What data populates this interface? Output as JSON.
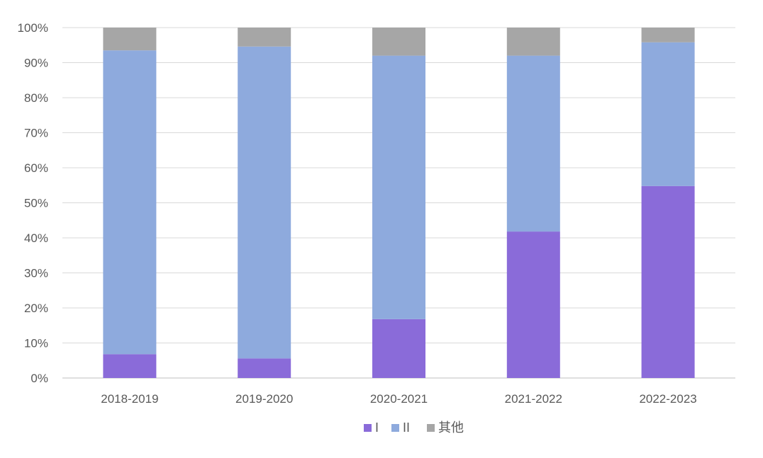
{
  "chart_data": {
    "type": "bar",
    "stacked": true,
    "normalized": true,
    "categories": [
      "2018-2019",
      "2019-2020",
      "2020-2021",
      "2021-2022",
      "2022-2023"
    ],
    "series": [
      {
        "name": "I",
        "color": "#8a6bd9",
        "values": [
          6.8,
          5.6,
          16.8,
          41.8,
          54.8
        ]
      },
      {
        "name": "II",
        "color": "#8eaadd",
        "values": [
          86.7,
          89.0,
          75.2,
          50.2,
          41.0
        ]
      },
      {
        "name": "其他",
        "color": "#a6a6a6",
        "values": [
          6.5,
          5.4,
          8.0,
          8.0,
          4.2
        ]
      }
    ],
    "ylim": [
      0,
      100
    ],
    "yticks": [
      "0%",
      "10%",
      "20%",
      "30%",
      "40%",
      "50%",
      "60%",
      "70%",
      "80%",
      "90%",
      "100%"
    ],
    "title": "",
    "xlabel": "",
    "ylabel": "",
    "grid": true,
    "legend": "bottom-center"
  }
}
